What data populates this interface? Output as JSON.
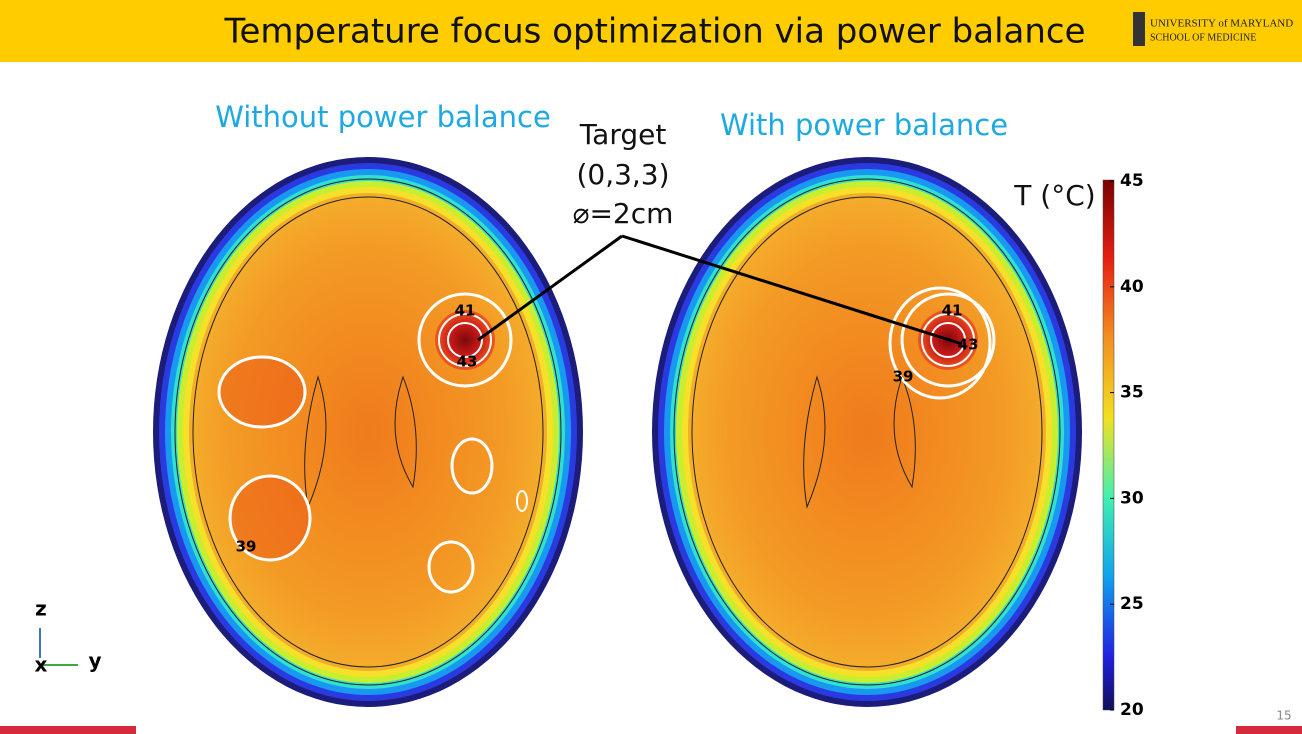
{
  "header": {
    "title": "Temperature focus optimization via power balance",
    "logo_line1": "UNIVERSITY of MARYLAND",
    "logo_line2": "SCHOOL OF MEDICINE"
  },
  "panels": [
    {
      "title": "Without power balance",
      "contour_labels": [
        "41",
        "43",
        "39"
      ]
    },
    {
      "title": "With power balance",
      "contour_labels": [
        "41",
        "43",
        "39"
      ]
    }
  ],
  "annotation": {
    "line1": "Target",
    "line2": "(0,3,3)",
    "line3": "⌀=2cm"
  },
  "colorbar": {
    "label": "T (°C)",
    "ticks": [
      "45",
      "40",
      "35",
      "30",
      "25",
      "20"
    ]
  },
  "axes_icon": {
    "z": "z",
    "x": "x",
    "y": "y"
  },
  "page_number": "15"
}
